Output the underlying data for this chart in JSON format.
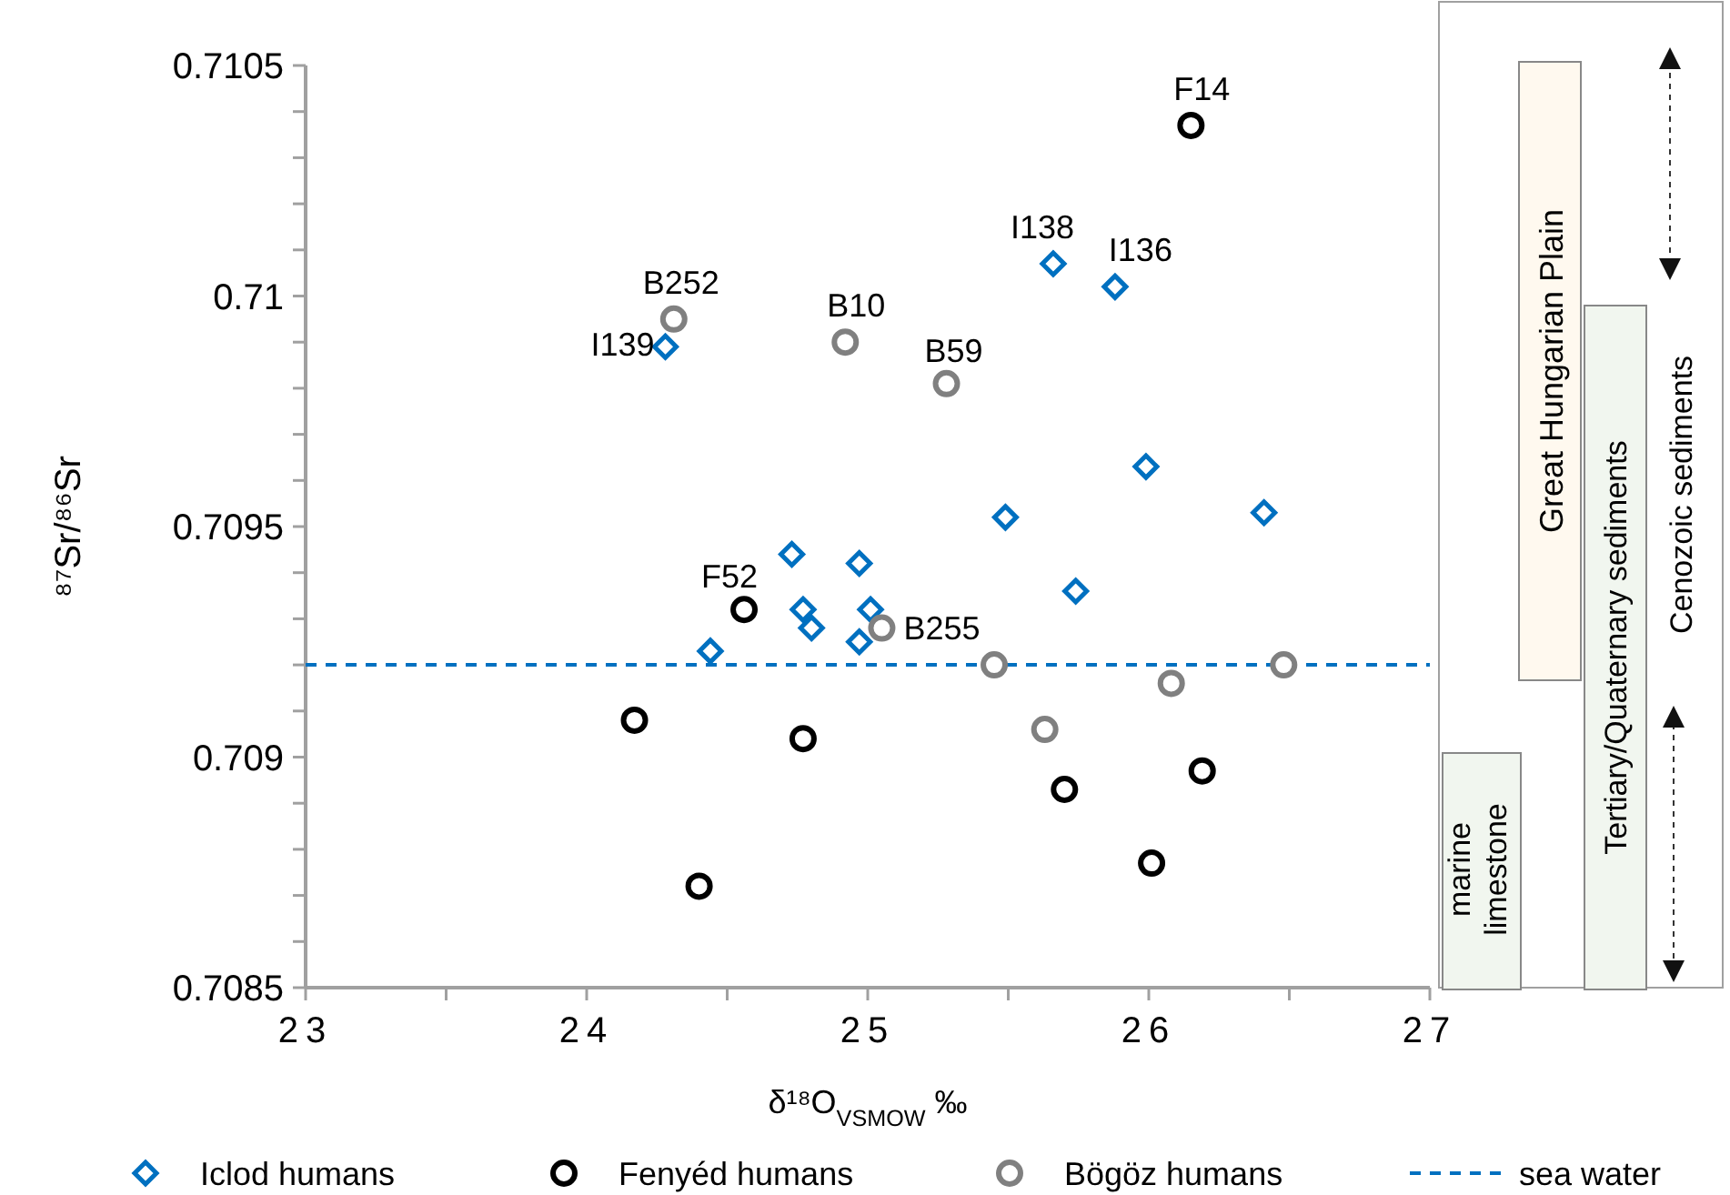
{
  "chart_data": {
    "type": "scatter",
    "xlabel": "δ¹⁸O$_{VSMOW}$ ‰",
    "ylabel": "⁸⁷Sr/⁸⁶Sr",
    "xlim": [
      23,
      27
    ],
    "xticks": [
      23,
      {
        "value": 23.5,
        "label": null
      },
      24,
      {
        "value": 24.5,
        "label": null
      },
      25,
      {
        "value": 25.5,
        "label": null
      },
      26,
      {
        "value": 26.5,
        "label": null
      },
      27
    ],
    "ylim": [
      0.7085,
      0.7105
    ],
    "yticks": [
      0.7085,
      {
        "value": 0.7086,
        "label": null
      },
      {
        "value": 0.7087,
        "label": null
      },
      {
        "value": 0.7088,
        "label": null
      },
      {
        "value": 0.7089,
        "label": null
      },
      0.709,
      {
        "value": 0.7091,
        "label": null
      },
      {
        "value": 0.7092,
        "label": null
      },
      {
        "value": 0.7093,
        "label": null
      },
      {
        "value": 0.7094,
        "label": null
      },
      0.7095,
      {
        "value": 0.7096,
        "label": null
      },
      {
        "value": 0.7097,
        "label": null
      },
      {
        "value": 0.7098,
        "label": null
      },
      {
        "value": 0.7099,
        "label": null
      },
      0.71,
      {
        "value": 0.7101,
        "label": null
      },
      {
        "value": 0.7102,
        "label": null
      },
      {
        "value": 0.7103,
        "label": null
      },
      {
        "value": 0.7104,
        "label": null
      },
      0.7105
    ],
    "grid": false,
    "legend": "bottom",
    "series": [
      {
        "name": "Iclod humans",
        "color": "#0070c0",
        "marker": "diamond",
        "x": [
          24.28,
          25.66,
          25.88,
          25.99,
          26.41,
          25.49,
          24.73,
          24.97,
          25.74,
          24.77,
          25.01,
          24.8,
          24.97,
          24.44
        ],
        "values": [
          0.70989,
          0.71007,
          0.71002,
          0.70963,
          0.70953,
          0.70952,
          0.70944,
          0.70942,
          0.70936,
          0.70932,
          0.70932,
          0.70928,
          0.70925,
          0.70923
        ]
      },
      {
        "name": "Fenyéd humans",
        "color": "#000000",
        "marker": "circle",
        "x": [
          26.15,
          24.56,
          24.17,
          24.77,
          25.7,
          26.19,
          26.01,
          24.4
        ],
        "values": [
          0.71037,
          0.70932,
          0.70908,
          0.70904,
          0.70893,
          0.70897,
          0.70877,
          0.70872
        ]
      },
      {
        "name": "Bögöz humans",
        "color": "#808080",
        "marker": "circle",
        "x": [
          24.31,
          24.92,
          25.28,
          25.05,
          25.45,
          26.48,
          26.08,
          25.63
        ],
        "values": [
          0.70995,
          0.7099,
          0.70981,
          0.70928,
          0.7092,
          0.7092,
          0.70916,
          0.70906
        ]
      }
    ],
    "ref_lines": [
      {
        "axis": "y",
        "value": 0.7092,
        "label": "sea water",
        "color": "#0070c0",
        "line_style": "dashed"
      }
    ],
    "annotations": [
      {
        "text": "I139",
        "x": 24.28,
        "y": 0.70989
      },
      {
        "text": "B252",
        "x": 24.31,
        "y": 0.70995
      },
      {
        "text": "B10",
        "x": 24.92,
        "y": 0.7099
      },
      {
        "text": "B59",
        "x": 25.28,
        "y": 0.70981
      },
      {
        "text": "I138",
        "x": 25.66,
        "y": 0.71007
      },
      {
        "text": "I136",
        "x": 25.88,
        "y": 0.71002
      },
      {
        "text": "F14",
        "x": 26.15,
        "y": 0.71037
      },
      {
        "text": "F52",
        "x": 24.56,
        "y": 0.70932
      },
      {
        "text": "B255",
        "x": 25.05,
        "y": 0.70928
      },
      "Great Hungarian Plain",
      "Tertiary/Quaternary sediments",
      "Cenozoic sediments",
      "marine limestone"
    ]
  }
}
